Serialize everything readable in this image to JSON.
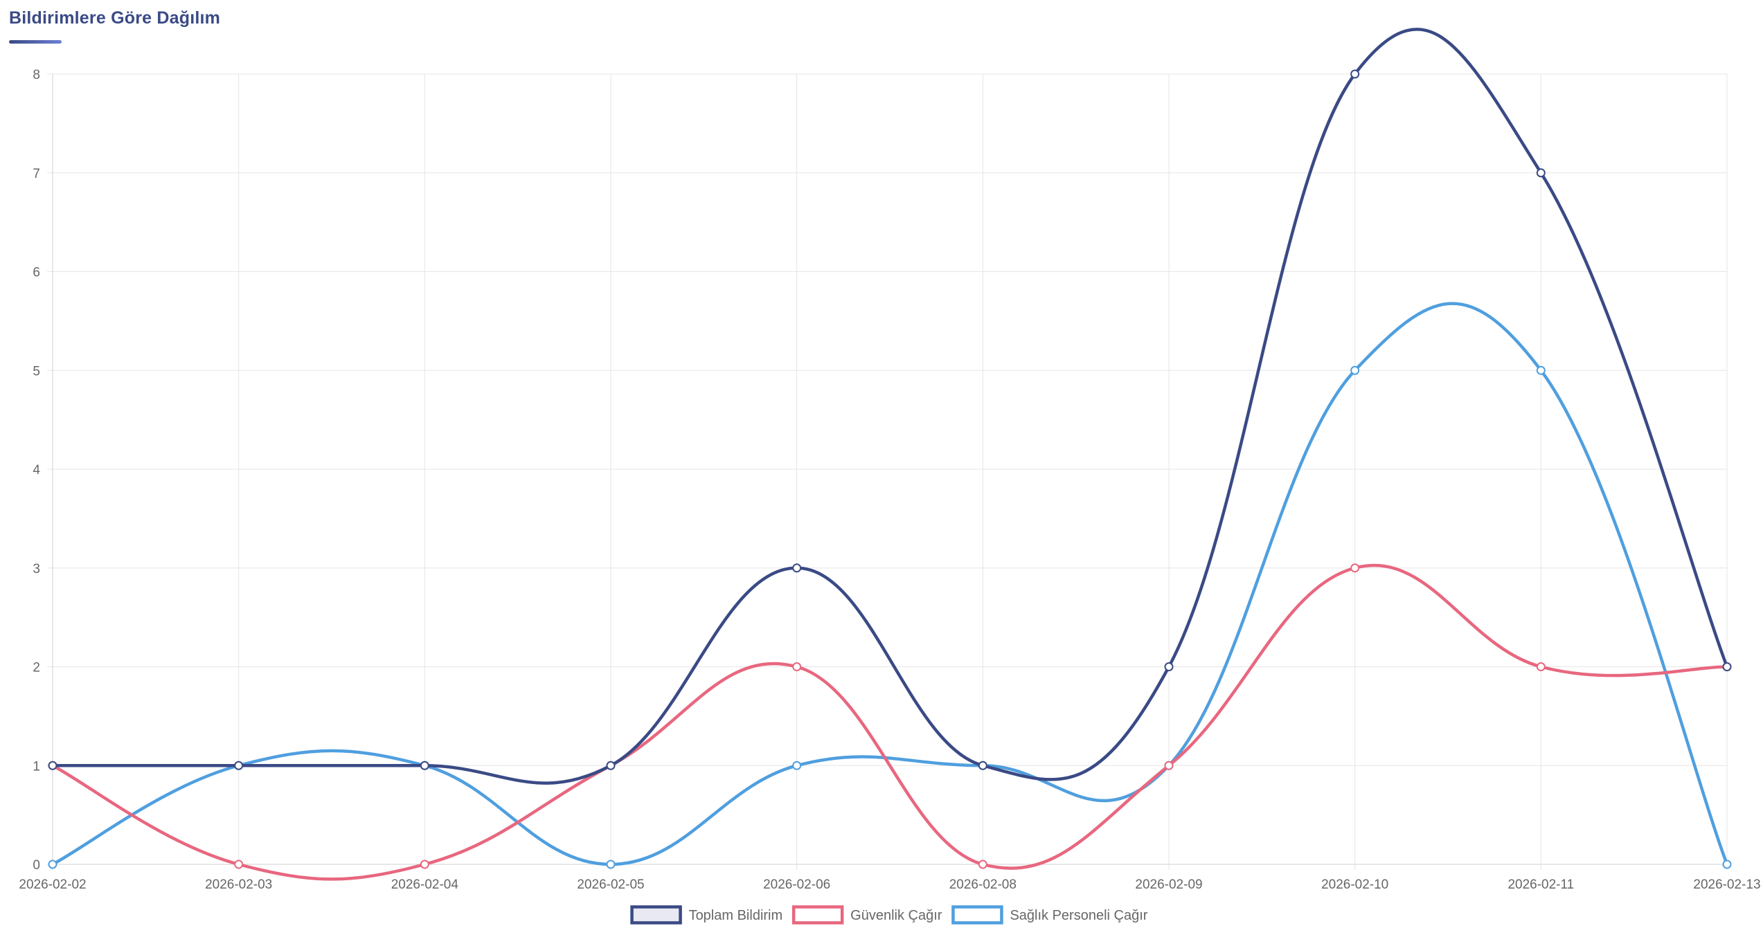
{
  "header": {
    "title": "Bildirimlere Göre Dağılım"
  },
  "colors": {
    "title": "#3a4a85",
    "grid": "#e5e5e5",
    "tick_text": "#666666"
  },
  "chart_data": {
    "type": "line",
    "categories": [
      "2026-02-02",
      "2026-02-03",
      "2026-02-04",
      "2026-02-05",
      "2026-02-06",
      "2026-02-08",
      "2026-02-09",
      "2026-02-10",
      "2026-02-11",
      "2026-02-13"
    ],
    "series": [
      {
        "name": "Toplam Bildirim",
        "color": "#3a4a85",
        "fill": "#e8e9f2",
        "values": [
          1,
          1,
          1,
          1,
          3,
          1,
          2,
          8,
          7,
          2
        ]
      },
      {
        "name": "Güvenlik Çağır",
        "color": "#e8677f",
        "fill": "#ffffff",
        "values": [
          1,
          0,
          0,
          1,
          2,
          0,
          1,
          3,
          2,
          2
        ]
      },
      {
        "name": "Sağlık Personeli Çağır",
        "color": "#4f9fdf",
        "fill": "#ffffff",
        "values": [
          0,
          1,
          1,
          0,
          1,
          1,
          1,
          5,
          5,
          0
        ]
      }
    ],
    "ylim": [
      0,
      8
    ],
    "yticks": [
      0,
      1,
      2,
      3,
      4,
      5,
      6,
      7,
      8
    ],
    "grid": true,
    "legend": "bottom-center",
    "curve": "smooth"
  }
}
